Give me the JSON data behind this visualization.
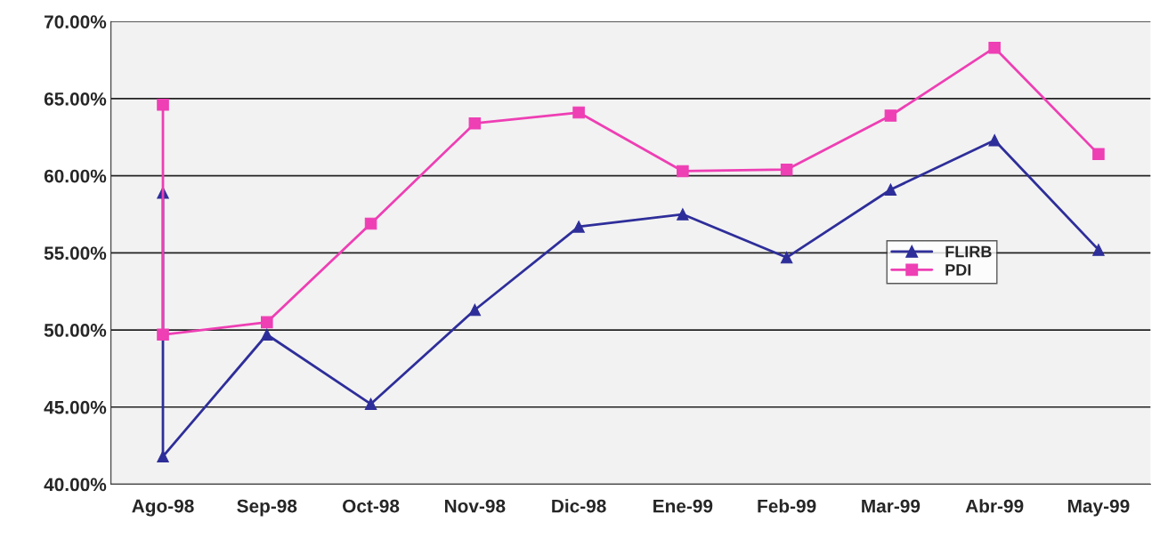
{
  "chart_data": {
    "type": "line",
    "categories": [
      "Ago-98",
      "Sep-98",
      "Oct-98",
      "Nov-98",
      "Dic-98",
      "Ene-99",
      "Feb-99",
      "Mar-99",
      "Abr-99",
      "May-99"
    ],
    "series": [
      {
        "name": "FLIRB",
        "color": "#2e2e9a",
        "marker": "triangle",
        "x": [
          "Ago-98",
          "Ago-98",
          "Sep-98",
          "Oct-98",
          "Nov-98",
          "Dic-98",
          "Ene-99",
          "Feb-99",
          "Mar-99",
          "Abr-99",
          "May-99"
        ],
        "values": [
          58.9,
          41.8,
          49.7,
          45.2,
          51.3,
          56.7,
          57.5,
          54.7,
          59.1,
          62.3,
          55.2
        ]
      },
      {
        "name": "PDI",
        "color": "#ee3fb4",
        "marker": "square",
        "x": [
          "Ago-98",
          "Ago-98",
          "Sep-98",
          "Oct-98",
          "Nov-98",
          "Dic-98",
          "Ene-99",
          "Feb-99",
          "Mar-99",
          "Abr-99",
          "May-99"
        ],
        "values": [
          64.6,
          49.7,
          50.5,
          56.9,
          63.4,
          64.1,
          60.3,
          60.4,
          63.9,
          68.3,
          61.4
        ]
      }
    ],
    "ylim": [
      40,
      70
    ],
    "yticks": [
      {
        "value": 40,
        "label": "40.00%"
      },
      {
        "value": 45,
        "label": "45.00%"
      },
      {
        "value": 50,
        "label": "50.00%"
      },
      {
        "value": 55,
        "label": "55.00%"
      },
      {
        "value": 60,
        "label": "60.00%"
      },
      {
        "value": 65,
        "label": "65.00%"
      },
      {
        "value": 70,
        "label": "70.00%"
      }
    ],
    "grid": "y",
    "legend": "right",
    "line_style": "solid"
  }
}
